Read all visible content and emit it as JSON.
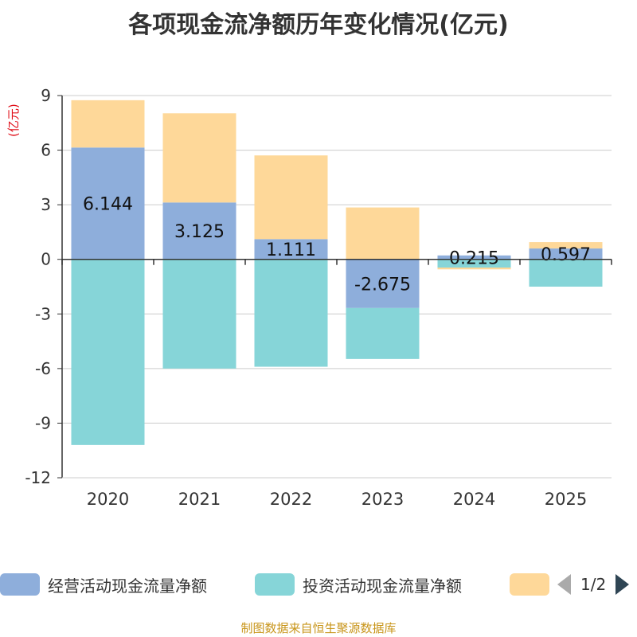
{
  "chart_data": {
    "type": "bar",
    "stacked": true,
    "title": "各项现金流净额历年变化情况(亿元)",
    "ylabel": "(亿元)",
    "categories": [
      "2020",
      "2021",
      "2022",
      "2023",
      "2024",
      "2025"
    ],
    "ylim": [
      -12,
      9
    ],
    "yticks": [
      9,
      6,
      3,
      0,
      -3,
      -6,
      -9,
      -12
    ],
    "series": [
      {
        "name": "经营活动现金流量净额",
        "color": "#8eaedb",
        "values": [
          6.144,
          3.125,
          1.111,
          -2.675,
          0.215,
          0.597
        ],
        "labels": [
          "6.144",
          "3.125",
          "1.111",
          "-2.675",
          "0.215",
          "0.597"
        ]
      },
      {
        "name": "投资活动现金流量净额",
        "color": "#86d5d8",
        "values": [
          -10.2,
          -6.0,
          -5.9,
          -2.8,
          -0.45,
          -1.5
        ]
      },
      {
        "name": "",
        "color": "#fed899",
        "values": [
          2.6,
          4.9,
          4.6,
          2.85,
          -0.1,
          0.35
        ]
      }
    ],
    "grid": true
  },
  "legend": {
    "items": [
      {
        "label": "经营活动现金流量净额",
        "color": "#8eaedb"
      },
      {
        "label": "投资活动现金流量净额",
        "color": "#86d5d8"
      },
      {
        "label": "",
        "color": "#fed899"
      }
    ],
    "page": "1/2"
  },
  "source": "制图数据来自恒生聚源数据库"
}
